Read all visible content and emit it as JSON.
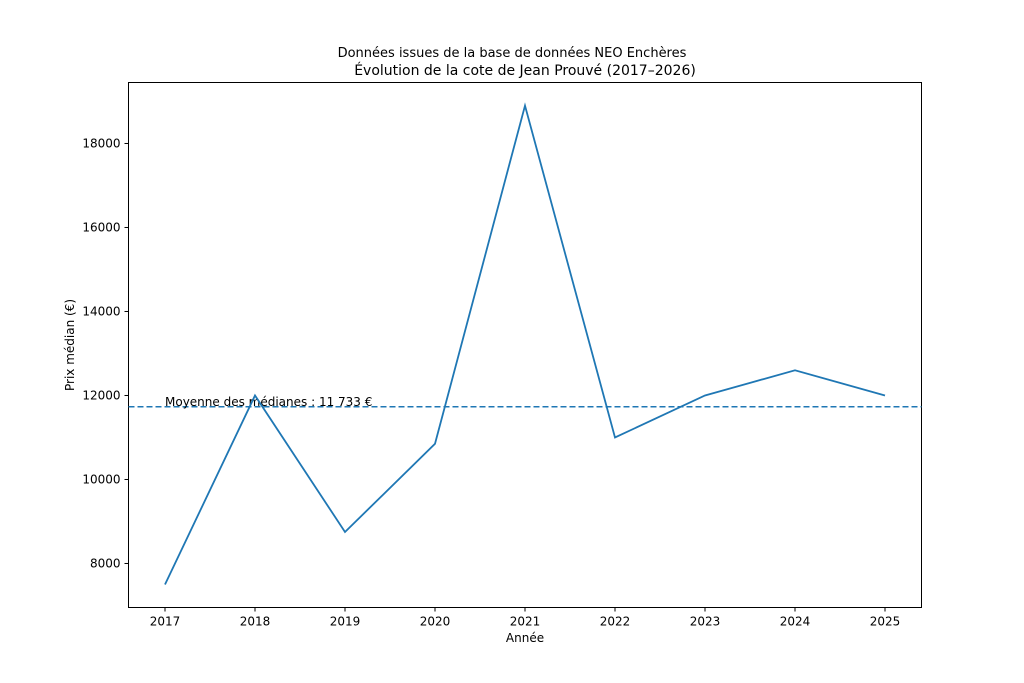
{
  "chart_data": {
    "type": "line",
    "title": "Données issues de la base de données NEO Enchères",
    "subtitle": "Évolution de la cote de Jean Prouvé (2017–2026)",
    "xlabel": "Année",
    "ylabel": "Prix médian (€)",
    "categories": [
      "2017",
      "2018",
      "2019",
      "2020",
      "2021",
      "2022",
      "2023",
      "2024",
      "2025"
    ],
    "series": [
      {
        "name": "Prix médian",
        "color": "#1f77b4",
        "values": [
          7500,
          12000,
          8750,
          10850,
          18900,
          11000,
          12000,
          12600,
          12000
        ]
      }
    ],
    "reference_line": {
      "value": 11733,
      "style": "dashed",
      "color": "#1f77b4",
      "label": "Moyenne des médianes : 11 733 €"
    },
    "yticks": [
      8000,
      10000,
      12000,
      14000,
      16000,
      18000
    ],
    "ylim": [
      6952,
      19452
    ],
    "grid": false,
    "legend": "none"
  }
}
